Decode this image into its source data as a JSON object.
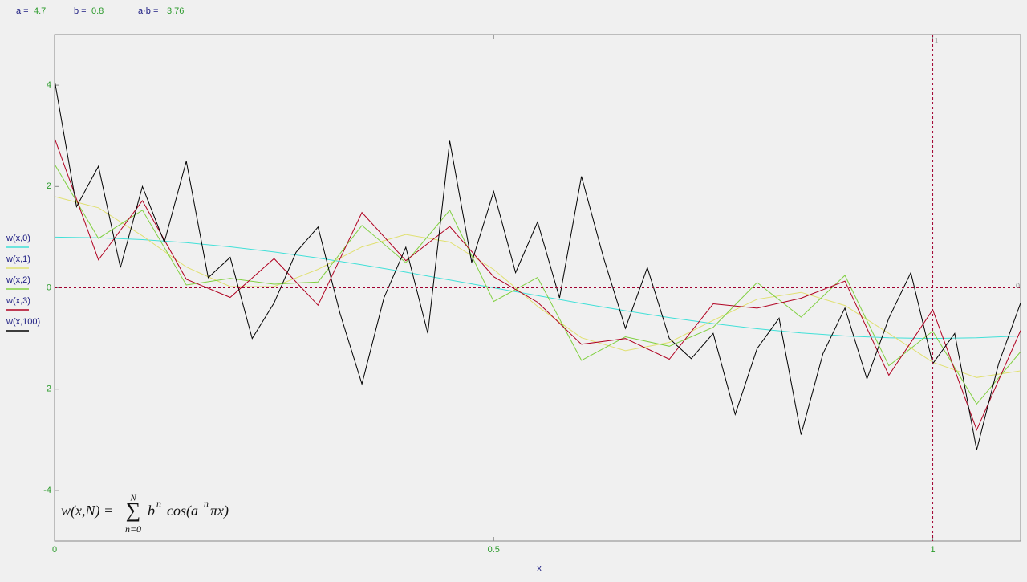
{
  "definitions": [
    {
      "label": "a =",
      "value": 4.7
    },
    {
      "label": "b =",
      "value": 0.8
    },
    {
      "label": "a·b =",
      "value": 3.76
    }
  ],
  "chart_data": {
    "type": "line",
    "xlabel": "x",
    "xlim": [
      0,
      1.1
    ],
    "xticks": [
      0,
      0.5,
      1
    ],
    "ylim": [
      -5,
      5
    ],
    "yticks": [
      -4,
      -2,
      0,
      2,
      4
    ],
    "markers": {
      "x": 1,
      "y": 0,
      "color": "#a00030"
    },
    "annotation": {
      "lhs": "w(x,N) =",
      "sum": "∑",
      "upper": "N",
      "lower": "n=0",
      "base": "b",
      "exp1": "n",
      "func": "cos(a",
      "exp2": "n",
      "tail": "πx)"
    },
    "series": [
      {
        "name": "w(x,0)",
        "color": "#40e0d8",
        "x": [
          0,
          0.05,
          0.1,
          0.15,
          0.2,
          0.25,
          0.3,
          0.35,
          0.4,
          0.45,
          0.5,
          0.55,
          0.6,
          0.65,
          0.7,
          0.75,
          0.8,
          0.85,
          0.9,
          0.95,
          1,
          1.05,
          1.1
        ],
        "values": [
          1,
          0.988,
          0.951,
          0.891,
          0.809,
          0.707,
          0.588,
          0.454,
          0.309,
          0.156,
          0,
          -0.156,
          -0.309,
          -0.454,
          -0.588,
          -0.707,
          -0.809,
          -0.891,
          -0.951,
          -0.988,
          -1,
          -0.988,
          -0.951
        ]
      },
      {
        "name": "w(x,1)",
        "color": "#e0e070",
        "x": [
          0,
          0.05,
          0.1,
          0.15,
          0.2,
          0.25,
          0.3,
          0.35,
          0.4,
          0.45,
          0.5,
          0.55,
          0.6,
          0.65,
          0.7,
          0.75,
          0.8,
          0.85,
          0.9,
          0.95,
          1,
          1.05,
          1.1
        ],
        "values": [
          1.8,
          1.58,
          1.026,
          0.411,
          0.023,
          0.025,
          0.365,
          0.806,
          1.053,
          0.904,
          0.363,
          -0.367,
          -0.985,
          -1.242,
          -1.078,
          -0.644,
          -0.226,
          -0.091,
          -0.351,
          -0.9,
          -1.47,
          -1.771,
          -1.64
        ]
      },
      {
        "name": "w(x,2)",
        "color": "#80d040",
        "x": [
          0,
          0.05,
          0.1,
          0.15,
          0.2,
          0.25,
          0.3,
          0.35,
          0.4,
          0.45,
          0.5,
          0.55,
          0.6,
          0.65,
          0.7,
          0.75,
          0.8,
          0.85,
          0.9,
          0.95,
          1,
          1.05,
          1.1
        ],
        "values": [
          2.44,
          0.974,
          1.533,
          0.056,
          0.186,
          0.071,
          0.116,
          1.232,
          0.496,
          1.533,
          -0.271,
          0.204,
          -1.432,
          -0.966,
          -1.153,
          -0.779,
          0.104,
          -0.58,
          0.245,
          -1.539,
          -0.856,
          -2.295,
          -1.262
        ]
      },
      {
        "name": "w(x,3)",
        "color": "#b00020",
        "x": [
          0,
          0.05,
          0.1,
          0.15,
          0.2,
          0.25,
          0.3,
          0.35,
          0.4,
          0.45,
          0.5,
          0.55,
          0.6,
          0.65,
          0.7,
          0.75,
          0.8,
          0.85,
          0.9,
          0.95,
          1,
          1.05,
          1.1
        ],
        "values": [
          2.952,
          0.551,
          1.72,
          0.17,
          -0.19,
          0.577,
          -0.345,
          1.487,
          0.535,
          1.213,
          0.218,
          -0.285,
          -1.114,
          -1.002,
          -1.411,
          -0.317,
          -0.402,
          -0.206,
          0.133,
          -1.728,
          -0.432,
          -2.807,
          -0.841
        ]
      },
      {
        "name": "w(x,100)",
        "color": "#000000",
        "x": [
          0,
          0.025,
          0.05,
          0.075,
          0.1,
          0.125,
          0.15,
          0.175,
          0.2,
          0.225,
          0.25,
          0.275,
          0.3,
          0.325,
          0.35,
          0.375,
          0.4,
          0.425,
          0.45,
          0.475,
          0.5,
          0.525,
          0.55,
          0.575,
          0.6,
          0.625,
          0.65,
          0.675,
          0.7,
          0.725,
          0.75,
          0.775,
          0.8,
          0.825,
          0.85,
          0.875,
          0.9,
          0.925,
          0.95,
          0.975,
          1,
          1.025,
          1.05,
          1.075,
          1.1
        ],
        "values": [
          4.1,
          1.6,
          2.4,
          0.4,
          2.0,
          0.9,
          2.5,
          0.2,
          0.6,
          -1.0,
          -0.3,
          0.7,
          1.2,
          -0.5,
          -1.9,
          -0.2,
          0.8,
          -0.9,
          2.9,
          0.5,
          1.9,
          0.3,
          1.3,
          -0.2,
          2.2,
          0.6,
          -0.8,
          0.4,
          -1.0,
          -1.4,
          -0.9,
          -2.5,
          -1.2,
          -0.6,
          -2.9,
          -1.3,
          -0.4,
          -1.8,
          -0.6,
          0.3,
          -1.5,
          -0.9,
          -3.2,
          -1.5,
          -0.3
        ]
      }
    ]
  }
}
